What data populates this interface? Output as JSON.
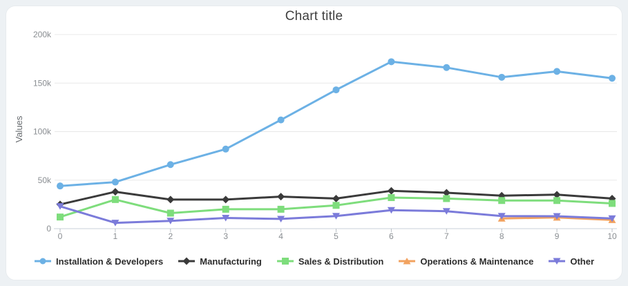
{
  "page": {
    "background": "#edf1f4",
    "card_background": "#ffffff"
  },
  "chart_data": {
    "type": "line",
    "title": "Chart title",
    "xlabel": "",
    "ylabel": "Values",
    "x": [
      0,
      1,
      2,
      3,
      4,
      5,
      6,
      7,
      8,
      9,
      10
    ],
    "x_tick_labels": [
      "0",
      "1",
      "2",
      "3",
      "4",
      "5",
      "6",
      "7",
      "8",
      "9",
      "10"
    ],
    "ylim": [
      0,
      200000
    ],
    "y_ticks": [
      0,
      50000,
      100000,
      150000,
      200000
    ],
    "y_tick_labels": [
      "0",
      "50k",
      "100k",
      "150k",
      "200k"
    ],
    "grid": "horizontal",
    "legend_position": "bottom",
    "series": [
      {
        "name": "Installation & Developers",
        "color": "#6cb1e5",
        "marker": "circle",
        "values": [
          44000,
          48000,
          66000,
          82000,
          112000,
          143000,
          172000,
          166000,
          156000,
          162000,
          155000
        ]
      },
      {
        "name": "Manufacturing",
        "color": "#3a3a3a",
        "marker": "diamond",
        "values": [
          25000,
          38000,
          30000,
          30000,
          33000,
          31000,
          39000,
          37000,
          34000,
          35000,
          31000
        ]
      },
      {
        "name": "Sales & Distribution",
        "color": "#7edd7c",
        "marker": "square",
        "values": [
          12000,
          30000,
          16000,
          20000,
          20000,
          24000,
          32000,
          31000,
          29000,
          29000,
          26000
        ]
      },
      {
        "name": "Operations & Maintenance",
        "color": "#f2a25f",
        "marker": "triangle-up",
        "values": [
          null,
          null,
          null,
          null,
          null,
          null,
          null,
          null,
          10500,
          11500,
          9000
        ]
      },
      {
        "name": "Other",
        "color": "#7b7bda",
        "marker": "triangle-down",
        "values": [
          23000,
          6000,
          8000,
          11000,
          10000,
          13000,
          19000,
          18000,
          13000,
          12800,
          10500
        ]
      }
    ]
  }
}
